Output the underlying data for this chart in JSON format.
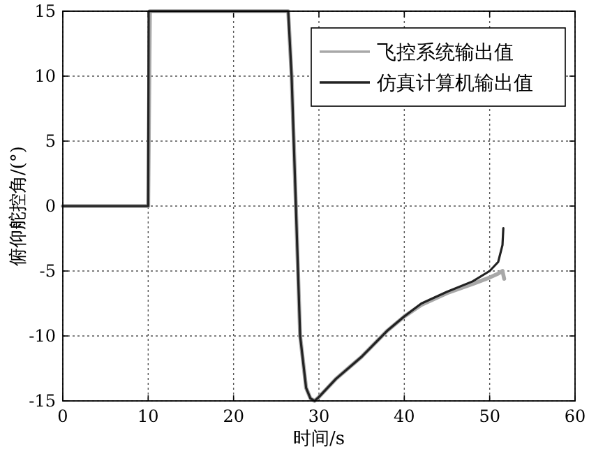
{
  "chart_data": {
    "type": "line",
    "xlabel": "时间/s",
    "ylabel": "俯仰舵控角/(°)",
    "xlim": [
      0,
      60
    ],
    "ylim": [
      -15,
      15
    ],
    "xticks": [
      0,
      10,
      20,
      30,
      40,
      50,
      60
    ],
    "yticks": [
      -15,
      -10,
      -5,
      0,
      5,
      10,
      15
    ],
    "grid": true,
    "legend": "top right",
    "line_style": "solid",
    "marker": "none",
    "series": [
      {
        "name": "飞控系统输出值",
        "color": "#a8a8a8",
        "x": [
          0,
          10,
          10.2,
          26.4,
          26.8,
          27.3,
          27.8,
          28.5,
          29,
          29.5,
          30,
          32,
          35,
          38,
          40,
          42,
          45,
          48,
          50,
          51,
          51.5,
          51.7
        ],
        "values": [
          0,
          0,
          15,
          15,
          10,
          0,
          -10,
          -14,
          -14.8,
          -15,
          -14.7,
          -13.3,
          -11.6,
          -9.6,
          -8.5,
          -7.6,
          -6.7,
          -6.0,
          -5.5,
          -5.2,
          -5.0,
          -5.6
        ]
      },
      {
        "name": "仿真计算机输出值",
        "color": "#222222",
        "x": [
          0,
          10,
          10.05,
          26.4,
          26.8,
          27.3,
          27.8,
          28.5,
          29,
          29.5,
          30,
          32,
          35,
          38,
          40,
          42,
          45,
          48,
          50,
          51,
          51.5,
          51.6
        ],
        "values": [
          0,
          0,
          15,
          15,
          10,
          0,
          -10,
          -14,
          -14.8,
          -15,
          -14.7,
          -13.3,
          -11.6,
          -9.6,
          -8.5,
          -7.5,
          -6.6,
          -5.8,
          -5.0,
          -4.3,
          -3.0,
          -1.7
        ]
      }
    ]
  }
}
